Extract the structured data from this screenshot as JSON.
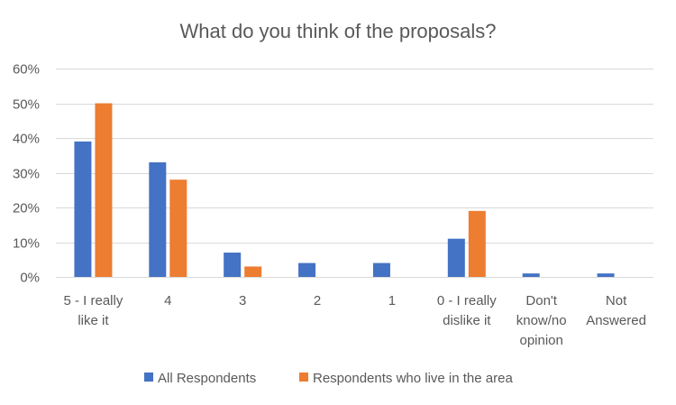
{
  "chart_data": {
    "type": "bar",
    "title": "What do you think of the proposals?",
    "xlabel": "",
    "ylabel": "",
    "ylim": [
      0,
      60
    ],
    "y_ticks": [
      "0%",
      "10%",
      "20%",
      "30%",
      "40%",
      "50%",
      "60%"
    ],
    "y_tick_values": [
      0,
      10,
      20,
      30,
      40,
      50,
      60
    ],
    "grid": true,
    "legend_position": "bottom",
    "categories": [
      [
        "5 - I really",
        "like it"
      ],
      [
        "4"
      ],
      [
        "3"
      ],
      [
        "2"
      ],
      [
        "1"
      ],
      [
        "0 - I really",
        "dislike it"
      ],
      [
        "Don't",
        "know/no",
        "opinion"
      ],
      [
        "Not",
        "Answered"
      ]
    ],
    "series": [
      {
        "name": "All Respondents",
        "color": "#4472C4",
        "values": [
          39,
          33,
          7,
          4,
          4,
          11,
          1,
          1
        ]
      },
      {
        "name": "Respondents who live in the area",
        "color": "#ED7D31",
        "values": [
          50,
          28,
          3,
          0,
          0,
          19,
          0,
          0
        ]
      }
    ]
  }
}
